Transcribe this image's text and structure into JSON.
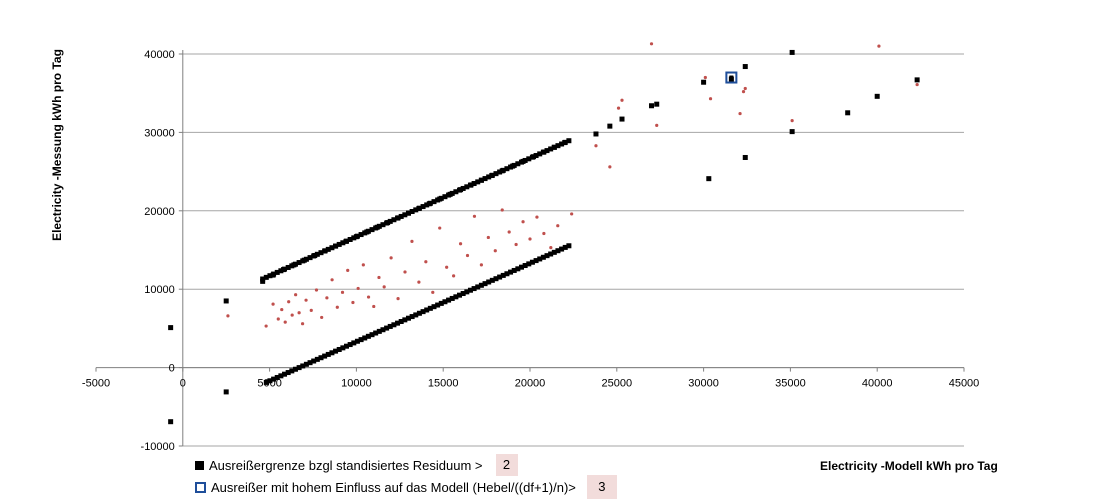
{
  "chart_data": {
    "type": "scatter",
    "xlabel": "Electricity -Modell kWh pro Tag",
    "ylabel": "Electricity -Messung  kWh pro Tag",
    "xlim": [
      -5000,
      45000
    ],
    "ylim": [
      -10000,
      40000
    ],
    "xticks": [
      "-5000",
      "0",
      "5000",
      "10000",
      "15000",
      "20000",
      "25000",
      "30000",
      "35000",
      "40000",
      "45000"
    ],
    "yticks": [
      "-10000",
      "0",
      "10000",
      "20000",
      "30000",
      "40000"
    ],
    "grid": "horizontal",
    "colors": {
      "outlier_bound": "#000000",
      "measurement": "#c0504d",
      "influence": "#1f4e9a",
      "grid": "#a6a6a6"
    },
    "boundary_offset": 6700,
    "series": [
      {
        "name": "Ausreißergrenze bzgl standisiertes Residuum >",
        "marker": "square",
        "x": [
          -700,
          -700,
          2500,
          2500,
          4600,
          5200,
          5800,
          6400,
          7000,
          7600,
          8200,
          8800,
          9400,
          10000,
          10600,
          11200,
          11800,
          12400,
          13000,
          13600,
          14200,
          14800,
          15400,
          16000,
          16600,
          17200,
          17800,
          18400,
          19000,
          19600,
          20200,
          20800,
          21400,
          22000,
          23800,
          24600,
          25300,
          27000,
          27300,
          30000,
          30300,
          31600,
          32400,
          32400,
          35100,
          35100,
          38300,
          40000,
          42300
        ],
        "y": [
          5100,
          -6900,
          8500,
          -3100,
          11000,
          11800,
          12500,
          13100,
          13700,
          14300,
          14900,
          15500,
          16100,
          16700,
          17300,
          17900,
          18500,
          19100,
          19700,
          20300,
          20900,
          21500,
          22100,
          22700,
          23300,
          23900,
          24500,
          25100,
          25700,
          26300,
          26900,
          27500,
          28100,
          28700,
          29800,
          30800,
          31700,
          33400,
          33600,
          36400,
          24100,
          36800,
          38400,
          26800,
          40200,
          30100,
          32500,
          34600,
          36700
        ],
        "boundary_pairs": true
      },
      {
        "name": "Ausreißer mit hohem Einfluss auf das Modell  (Hebel/((df+1)/n)>",
        "marker": "hollow-square",
        "x": [
          31600
        ],
        "y": [
          37000
        ]
      },
      {
        "name": "",
        "marker": "dot",
        "x": [
          2600,
          4800,
          5200,
          5500,
          5700,
          5900,
          6100,
          6300,
          6500,
          6700,
          6900,
          7100,
          7400,
          7700,
          8000,
          8300,
          8600,
          8900,
          9200,
          9500,
          9800,
          10100,
          10400,
          10700,
          11000,
          11300,
          11600,
          12000,
          12400,
          12800,
          13200,
          13600,
          14000,
          14400,
          14800,
          15200,
          15600,
          16000,
          16400,
          16800,
          17200,
          17600,
          18000,
          18400,
          18800,
          19200,
          19600,
          20000,
          20400,
          20800,
          21200,
          21600,
          22400,
          23800,
          24600,
          25100,
          25300,
          27000,
          27300,
          30100,
          30400,
          32100,
          32300,
          32400,
          35100,
          40100,
          42300
        ],
        "y": [
          6600,
          5300,
          8100,
          6200,
          7400,
          5800,
          8400,
          6700,
          9300,
          7000,
          5600,
          8600,
          7300,
          9900,
          6400,
          8900,
          11200,
          7700,
          9600,
          12400,
          8300,
          10100,
          13100,
          9000,
          7800,
          11500,
          10300,
          14000,
          8800,
          12200,
          16100,
          10900,
          13500,
          9600,
          17800,
          12800,
          11700,
          15800,
          14300,
          19300,
          13100,
          16600,
          14900,
          20100,
          17300,
          15700,
          18600,
          16400,
          19200,
          17100,
          15300,
          18100,
          19600,
          28300,
          25600,
          33100,
          34100,
          41300,
          30900,
          37000,
          34300,
          32400,
          35200,
          35600,
          31500,
          41000,
          36100
        ]
      }
    ]
  },
  "legend": {
    "item1": {
      "label": "Ausreißergrenze bzgl standisiertes Residuum >",
      "value": "2"
    },
    "item2": {
      "label": "Ausreißer mit hohem Einfluss auf das Modell  (Hebel/((df+1)/n)>",
      "value": "3"
    }
  }
}
